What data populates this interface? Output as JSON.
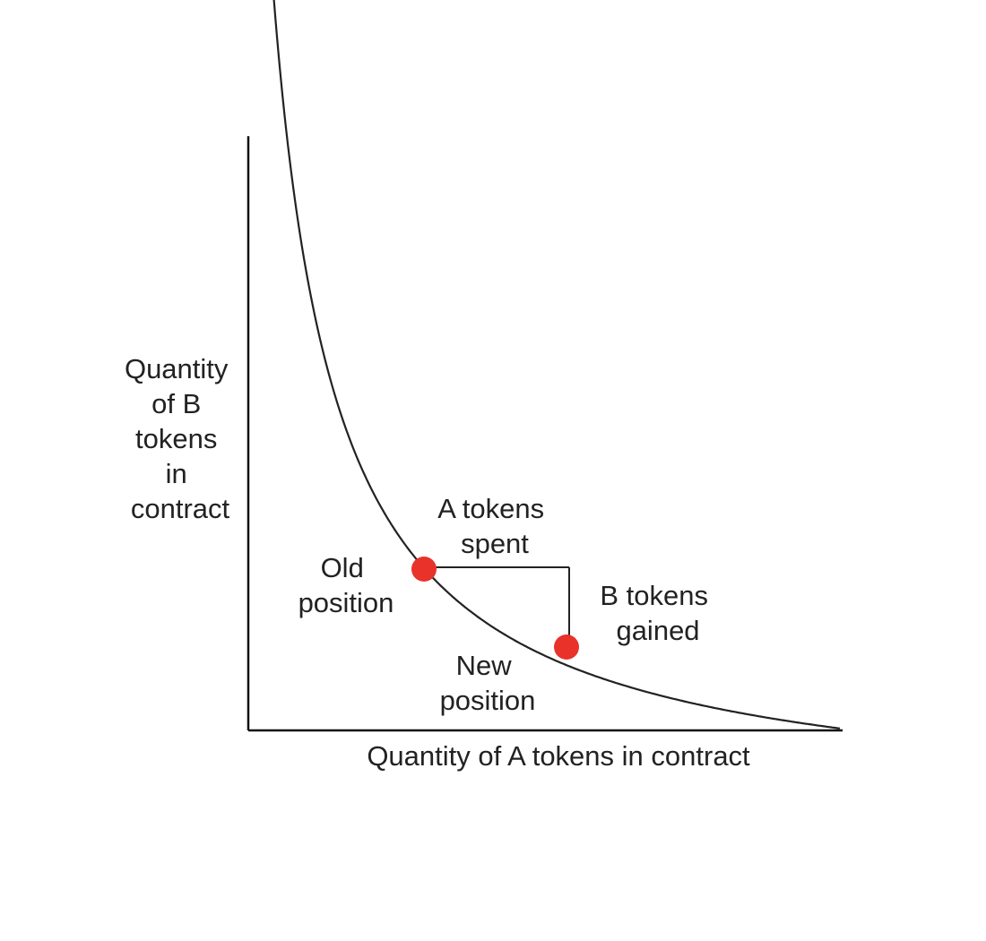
{
  "diagram": {
    "x_axis_label": "Quantity of A tokens in contract",
    "y_axis_label": [
      "Quantity",
      "of B",
      "tokens",
      "in",
      "contract"
    ],
    "old_position_label": [
      "Old",
      "position"
    ],
    "new_position_label": [
      "New",
      "position"
    ],
    "a_spent_label": [
      "A tokens",
      "spent"
    ],
    "b_gained_label": [
      "B tokens",
      "gained"
    ],
    "colors": {
      "axis": "#111111",
      "curve": "#222222",
      "point": "#e8322a",
      "text": "#222222"
    }
  }
}
